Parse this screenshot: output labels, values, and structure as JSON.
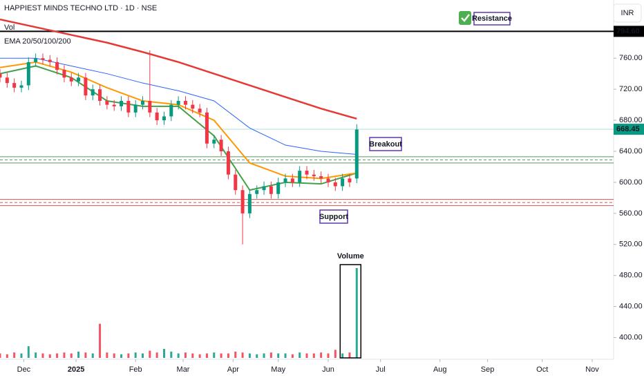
{
  "chart_data": {
    "type": "candlestick",
    "title": "HAPPIEST MINDS TECHNO LTD · 1D · NSE",
    "volume_label": "Vol",
    "indicator_label": "EMA 20/50/100/200",
    "currency": "INR",
    "x": [
      -10,
      -7,
      -4,
      -1,
      2,
      5,
      8,
      11,
      14,
      17,
      20,
      23,
      26,
      29,
      32,
      35,
      38,
      41,
      44,
      47,
      50,
      53,
      56,
      59,
      62,
      65,
      68,
      71,
      74,
      77,
      80,
      83,
      86,
      89,
      92,
      95,
      98,
      101,
      104,
      107,
      110,
      113,
      116,
      119,
      122,
      125,
      128,
      131,
      134,
      137,
      140
    ],
    "open": [
      740,
      735,
      728,
      722,
      725,
      755,
      760,
      758,
      755,
      745,
      735,
      730,
      735,
      712,
      720,
      705,
      700,
      698,
      705,
      690,
      700,
      705,
      690,
      680,
      685,
      700,
      705,
      700,
      695,
      690,
      650,
      655,
      640,
      610,
      590,
      560,
      585,
      590,
      595,
      585,
      600,
      605,
      600,
      615,
      610,
      608,
      605,
      600,
      595,
      605,
      605
    ],
    "high": [
      746,
      741,
      734,
      731,
      761,
      766,
      766,
      764,
      761,
      751,
      741,
      741,
      741,
      726,
      726,
      711,
      706,
      711,
      711,
      706,
      711,
      770,
      696,
      691,
      706,
      711,
      711,
      706,
      701,
      696,
      661,
      661,
      646,
      616,
      596,
      591,
      596,
      601,
      601,
      606,
      611,
      611,
      621,
      621,
      616,
      614,
      611,
      606,
      611,
      611,
      675
    ],
    "low": [
      729,
      722,
      716,
      716,
      719,
      749,
      752,
      749,
      739,
      729,
      724,
      724,
      706,
      706,
      699,
      694,
      692,
      692,
      684,
      684,
      694,
      684,
      674,
      674,
      679,
      694,
      694,
      689,
      684,
      644,
      644,
      634,
      604,
      584,
      520,
      554,
      579,
      584,
      579,
      579,
      594,
      594,
      594,
      604,
      602,
      599,
      594,
      589,
      589,
      594,
      599
    ],
    "close": [
      735,
      728,
      722,
      725,
      755,
      760,
      758,
      755,
      745,
      735,
      730,
      735,
      712,
      720,
      705,
      700,
      698,
      705,
      690,
      700,
      705,
      690,
      680,
      685,
      700,
      705,
      700,
      695,
      690,
      650,
      655,
      640,
      610,
      590,
      560,
      585,
      590,
      595,
      585,
      600,
      605,
      600,
      615,
      610,
      608,
      605,
      600,
      595,
      605,
      600,
      668
    ],
    "volume": [
      5,
      4,
      6,
      5,
      13,
      6,
      5,
      4,
      5,
      6,
      5,
      7,
      6,
      5,
      38,
      6,
      5,
      4,
      5,
      6,
      5,
      8,
      6,
      10,
      7,
      5,
      6,
      5,
      4,
      5,
      6,
      5,
      5,
      7,
      6,
      5,
      4,
      5,
      6,
      5,
      5,
      4,
      6,
      5,
      5,
      6,
      5,
      9,
      5,
      6,
      100
    ],
    "y2lim": [
      0,
      100
    ],
    "up_color": "#089981",
    "down_color": "#f23645",
    "series": [
      {
        "name": "EMA 20",
        "color": "#43a047",
        "width": 2,
        "x": [
          -10,
          5,
          20,
          35,
          50,
          65,
          80,
          95,
          110,
          125,
          140
        ],
        "values": [
          740,
          750,
          735,
          705,
          698,
          698,
          660,
          590,
          600,
          598,
          612
        ]
      },
      {
        "name": "EMA 50",
        "color": "#ff9800",
        "width": 2,
        "x": [
          -10,
          5,
          20,
          35,
          50,
          65,
          80,
          95,
          110,
          125,
          140
        ],
        "values": [
          748,
          755,
          742,
          722,
          705,
          700,
          680,
          625,
          608,
          605,
          612
        ]
      },
      {
        "name": "EMA 100",
        "color": "#2962ff",
        "width": 1,
        "x": [
          -10,
          5,
          20,
          35,
          50,
          65,
          80,
          95,
          110,
          125,
          140
        ],
        "values": [
          760,
          760,
          750,
          740,
          728,
          718,
          705,
          670,
          648,
          640,
          636
        ]
      },
      {
        "name": "EMA 200",
        "color": "#e53935",
        "width": 2.5,
        "x": [
          -10,
          5,
          20,
          35,
          50,
          65,
          80,
          95,
          110,
          125,
          140
        ],
        "values": [
          810,
          800,
          790,
          780,
          768,
          755,
          740,
          725,
          710,
          695,
          682
        ]
      }
    ],
    "resistance": {
      "value": 794.6,
      "label": "794.60",
      "color": "#000000",
      "text": "Resistance"
    },
    "last_price": {
      "value": 668.45,
      "label": "668.45",
      "color": "#089981"
    },
    "breakout_zone": {
      "values": [
        633,
        629,
        625
      ],
      "color": "#2e7d32",
      "text": "Breakout"
    },
    "support_zone": {
      "values": [
        578,
        574,
        570
      ],
      "color": "#c62828",
      "text": "Support"
    },
    "volume_note": "Volume",
    "xlim": [
      -10,
      248
    ],
    "xticks": [
      {
        "value": 0,
        "label": "Dec"
      },
      {
        "value": 22,
        "label": "2025"
      },
      {
        "value": 47,
        "label": "Feb"
      },
      {
        "value": 67,
        "label": "Mar"
      },
      {
        "value": 88,
        "label": "Apr"
      },
      {
        "value": 107,
        "label": "May"
      },
      {
        "value": 128,
        "label": "Jun"
      },
      {
        "value": 150,
        "label": "Jul"
      },
      {
        "value": 175,
        "label": "Aug"
      },
      {
        "value": 195,
        "label": "Sep"
      },
      {
        "value": 218,
        "label": "Oct"
      },
      {
        "value": 239,
        "label": "Nov"
      }
    ],
    "ylim": [
      372,
      835
    ],
    "yticks": [
      {
        "value": 400,
        "label": "400.00"
      },
      {
        "value": 440,
        "label": "440.00"
      },
      {
        "value": 480,
        "label": "480.00"
      },
      {
        "value": 520,
        "label": "520.00"
      },
      {
        "value": 560,
        "label": "560.00"
      },
      {
        "value": 600,
        "label": "600.00"
      },
      {
        "value": 640,
        "label": "640.00"
      },
      {
        "value": 680,
        "label": "680.00"
      },
      {
        "value": 720,
        "label": "720.00"
      },
      {
        "value": 760,
        "label": "760.00"
      }
    ]
  }
}
